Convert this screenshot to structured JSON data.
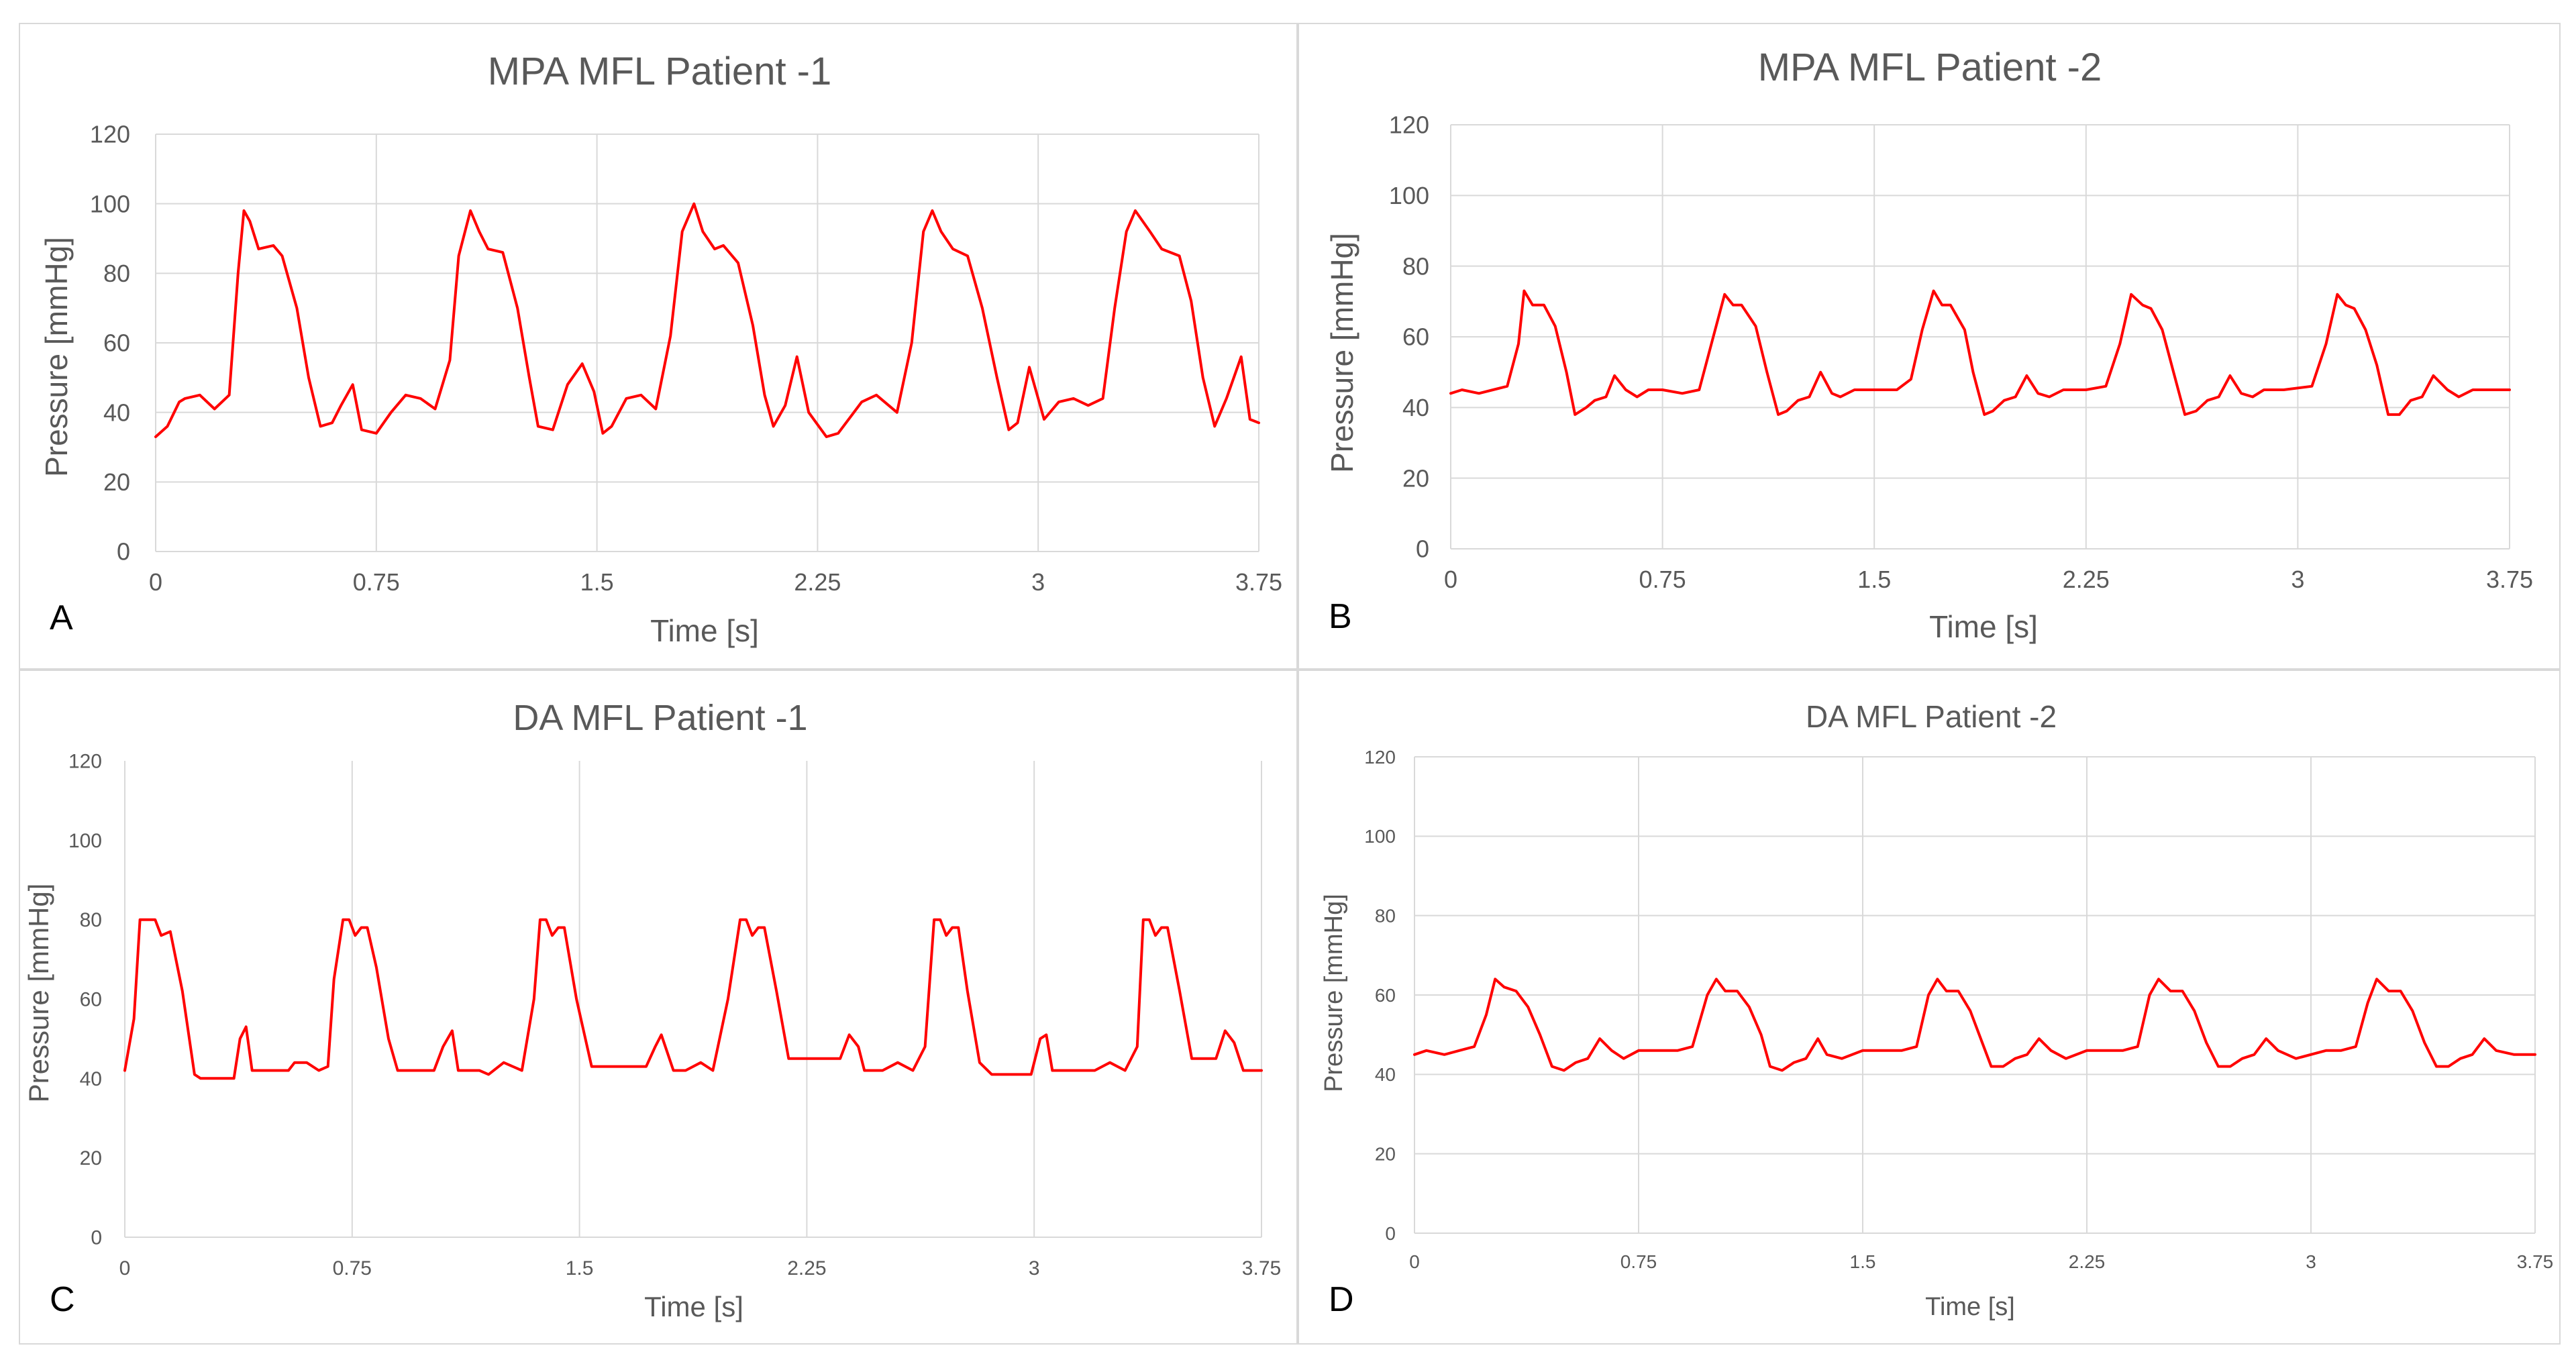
{
  "colors": {
    "series": "#ff0000",
    "grid": "#d9d9d9",
    "text": "#595959",
    "letter": "#000000"
  },
  "chart_data": [
    {
      "panel": "A",
      "type": "line",
      "title": "MPA MFL Patient  -1",
      "xlabel": "Time [s]",
      "ylabel": "Pressure [mmHg]",
      "xlim": [
        0,
        3.75
      ],
      "ylim": [
        0,
        120
      ],
      "xticks": [
        "0",
        "0.75",
        "1.5",
        "2.25",
        "3",
        "3.75"
      ],
      "xtick_values": [
        0,
        0.75,
        1.5,
        2.25,
        3,
        3.75
      ],
      "yticks": [
        "0",
        "20",
        "40",
        "60",
        "80",
        "100",
        "120"
      ],
      "ytick_values": [
        0,
        20,
        40,
        60,
        80,
        100,
        120
      ],
      "grid": "vertical and horizontal",
      "series": [
        {
          "name": "Pressure",
          "x": [
            0,
            0.04,
            0.08,
            0.1,
            0.15,
            0.2,
            0.25,
            0.28,
            0.3,
            0.32,
            0.35,
            0.4,
            0.43,
            0.48,
            0.52,
            0.56,
            0.6,
            0.63,
            0.67,
            0.7,
            0.75,
            0.8,
            0.85,
            0.9,
            0.95,
            1.0,
            1.03,
            1.07,
            1.1,
            1.13,
            1.18,
            1.23,
            1.27,
            1.3,
            1.35,
            1.4,
            1.45,
            1.49,
            1.52,
            1.55,
            1.6,
            1.65,
            1.7,
            1.75,
            1.79,
            1.83,
            1.86,
            1.9,
            1.93,
            1.98,
            2.03,
            2.07,
            2.1,
            2.14,
            2.18,
            2.22,
            2.28,
            2.32,
            2.4,
            2.45,
            2.52,
            2.57,
            2.61,
            2.64,
            2.67,
            2.71,
            2.76,
            2.81,
            2.86,
            2.9,
            2.93,
            2.97,
            3.02,
            3.07,
            3.12,
            3.17,
            3.22,
            3.26,
            3.3,
            3.33,
            3.38,
            3.42,
            3.48,
            3.52,
            3.56,
            3.6,
            3.64,
            3.69,
            3.72,
            3.75
          ],
          "y": [
            33,
            36,
            43,
            44,
            45,
            41,
            45,
            80,
            98,
            95,
            87,
            88,
            85,
            70,
            50,
            36,
            37,
            42,
            48,
            35,
            34,
            40,
            45,
            44,
            41,
            55,
            85,
            98,
            92,
            87,
            86,
            70,
            50,
            36,
            35,
            48,
            54,
            46,
            34,
            36,
            44,
            45,
            41,
            62,
            92,
            100,
            92,
            87,
            88,
            83,
            65,
            45,
            36,
            42,
            56,
            40,
            33,
            34,
            43,
            45,
            40,
            60,
            92,
            98,
            92,
            87,
            85,
            70,
            50,
            35,
            37,
            53,
            38,
            43,
            44,
            42,
            44,
            70,
            92,
            98,
            92,
            87,
            85,
            72,
            50,
            36,
            44,
            56,
            38,
            37
          ]
        }
      ]
    },
    {
      "panel": "B",
      "type": "line",
      "title": "MPA MFL Patient -2",
      "xlabel": "Time [s]",
      "ylabel": "Pressure [mmHg]",
      "xlim": [
        0,
        3.75
      ],
      "ylim": [
        0,
        120
      ],
      "xticks": [
        "0",
        "0.75",
        "1.5",
        "2.25",
        "3",
        "3.75"
      ],
      "xtick_values": [
        0,
        0.75,
        1.5,
        2.25,
        3,
        3.75
      ],
      "yticks": [
        "0",
        "20",
        "40",
        "60",
        "80",
        "100",
        "120"
      ],
      "ytick_values": [
        0,
        20,
        40,
        60,
        80,
        100,
        120
      ],
      "grid": "vertical and horizontal",
      "series": [
        {
          "name": "Pressure",
          "x": [
            0,
            0.04,
            0.1,
            0.15,
            0.2,
            0.24,
            0.26,
            0.29,
            0.33,
            0.37,
            0.41,
            0.44,
            0.48,
            0.51,
            0.55,
            0.58,
            0.62,
            0.66,
            0.7,
            0.75,
            0.82,
            0.88,
            0.93,
            0.97,
            1.0,
            1.03,
            1.08,
            1.12,
            1.16,
            1.19,
            1.23,
            1.27,
            1.31,
            1.35,
            1.38,
            1.43,
            1.5,
            1.58,
            1.63,
            1.67,
            1.71,
            1.74,
            1.77,
            1.82,
            1.85,
            1.89,
            1.92,
            1.96,
            2.0,
            2.04,
            2.08,
            2.12,
            2.17,
            2.25,
            2.32,
            2.37,
            2.41,
            2.45,
            2.48,
            2.52,
            2.56,
            2.6,
            2.64,
            2.68,
            2.72,
            2.76,
            2.8,
            2.84,
            2.88,
            2.95,
            3.05,
            3.1,
            3.14,
            3.17,
            3.2,
            3.24,
            3.28,
            3.32,
            3.36,
            3.4,
            3.44,
            3.48,
            3.53,
            3.57,
            3.62,
            3.68,
            3.75
          ],
          "y": [
            44,
            45,
            44,
            45,
            46,
            58,
            73,
            69,
            69,
            63,
            50,
            38,
            40,
            42,
            43,
            49,
            45,
            43,
            45,
            45,
            44,
            45,
            60,
            72,
            69,
            69,
            63,
            50,
            38,
            39,
            42,
            43,
            50,
            44,
            43,
            45,
            45,
            45,
            48,
            62,
            73,
            69,
            69,
            62,
            50,
            38,
            39,
            42,
            43,
            49,
            44,
            43,
            45,
            45,
            46,
            58,
            72,
            69,
            68,
            62,
            50,
            38,
            39,
            42,
            43,
            49,
            44,
            43,
            45,
            45,
            46,
            58,
            72,
            69,
            68,
            62,
            52,
            38,
            38,
            42,
            43,
            49,
            45,
            43,
            45,
            45,
            45
          ]
        }
      ]
    },
    {
      "panel": "C",
      "type": "line",
      "title": "DA MFL Patient -1",
      "xlabel": "Time  [s]",
      "ylabel": "Pressure [mmHg]",
      "xlim": [
        0,
        3.75
      ],
      "ylim": [
        0,
        120
      ],
      "xticks": [
        "0",
        "0.75",
        "1.5",
        "2.25",
        "3",
        "3.75"
      ],
      "xtick_values": [
        0,
        0.75,
        1.5,
        2.25,
        3,
        3.75
      ],
      "yticks": [
        "0",
        "20",
        "40",
        "60",
        "80",
        "100",
        "120"
      ],
      "ytick_values": [
        0,
        20,
        40,
        60,
        80,
        100,
        120
      ],
      "grid": "vertical only",
      "series": [
        {
          "name": "Pressure",
          "x": [
            0,
            0.03,
            0.05,
            0.08,
            0.1,
            0.12,
            0.15,
            0.19,
            0.23,
            0.25,
            0.36,
            0.38,
            0.4,
            0.42,
            0.44,
            0.54,
            0.56,
            0.6,
            0.64,
            0.67,
            0.69,
            0.72,
            0.74,
            0.76,
            0.78,
            0.8,
            0.83,
            0.87,
            0.9,
            1.02,
            1.05,
            1.08,
            1.1,
            1.17,
            1.2,
            1.25,
            1.31,
            1.35,
            1.37,
            1.39,
            1.41,
            1.43,
            1.45,
            1.49,
            1.54,
            1.57,
            1.72,
            1.75,
            1.77,
            1.81,
            1.85,
            1.9,
            1.94,
            1.99,
            2.03,
            2.05,
            2.07,
            2.09,
            2.11,
            2.15,
            2.19,
            2.22,
            2.36,
            2.39,
            2.42,
            2.44,
            2.5,
            2.55,
            2.6,
            2.64,
            2.67,
            2.69,
            2.71,
            2.73,
            2.75,
            2.78,
            2.82,
            2.86,
            2.99,
            3.02,
            3.04,
            3.06,
            3.2,
            3.25,
            3.3,
            3.34,
            3.36,
            3.38,
            3.4,
            3.42,
            3.44,
            3.48,
            3.52,
            3.54,
            3.6,
            3.63,
            3.66,
            3.69,
            3.75
          ],
          "y": [
            42,
            55,
            80,
            80,
            80,
            76,
            77,
            62,
            41,
            40,
            40,
            50,
            53,
            42,
            42,
            42,
            44,
            44,
            42,
            43,
            65,
            80,
            80,
            76,
            78,
            78,
            68,
            50,
            42,
            42,
            48,
            52,
            42,
            42,
            41,
            44,
            42,
            60,
            80,
            80,
            76,
            78,
            78,
            60,
            43,
            43,
            43,
            48,
            51,
            42,
            42,
            44,
            42,
            60,
            80,
            80,
            76,
            78,
            78,
            62,
            45,
            45,
            45,
            51,
            48,
            42,
            42,
            44,
            42,
            48,
            80,
            80,
            76,
            78,
            78,
            62,
            44,
            41,
            41,
            50,
            51,
            42,
            42,
            44,
            42,
            48,
            80,
            80,
            76,
            78,
            78,
            62,
            45,
            45,
            45,
            52,
            49,
            42,
            42
          ]
        }
      ]
    },
    {
      "panel": "D",
      "type": "line",
      "title": "DA MFL Patient -2",
      "xlabel": "Time [s]",
      "ylabel": "Pressure [mmHg]",
      "xlim": [
        0,
        3.75
      ],
      "ylim": [
        0,
        120
      ],
      "xticks": [
        "0",
        "0.75",
        "1.5",
        "2.25",
        "3",
        "3.75"
      ],
      "xtick_values": [
        0,
        0.75,
        1.5,
        2.25,
        3,
        3.75
      ],
      "yticks": [
        "0",
        "20",
        "40",
        "60",
        "80",
        "100",
        "120"
      ],
      "ytick_values": [
        0,
        20,
        40,
        60,
        80,
        100,
        120
      ],
      "grid": "vertical and horizontal",
      "series": [
        {
          "name": "Pressure",
          "x": [
            0,
            0.04,
            0.1,
            0.15,
            0.2,
            0.24,
            0.27,
            0.3,
            0.34,
            0.38,
            0.42,
            0.46,
            0.5,
            0.54,
            0.58,
            0.62,
            0.66,
            0.7,
            0.75,
            0.82,
            0.88,
            0.93,
            0.98,
            1.01,
            1.04,
            1.08,
            1.12,
            1.16,
            1.19,
            1.23,
            1.27,
            1.31,
            1.35,
            1.38,
            1.43,
            1.5,
            1.58,
            1.63,
            1.68,
            1.72,
            1.75,
            1.78,
            1.82,
            1.86,
            1.9,
            1.93,
            1.97,
            2.01,
            2.05,
            2.09,
            2.13,
            2.18,
            2.25,
            2.32,
            2.37,
            2.42,
            2.46,
            2.49,
            2.53,
            2.57,
            2.61,
            2.65,
            2.69,
            2.73,
            2.77,
            2.81,
            2.85,
            2.89,
            2.95,
            3.05,
            3.1,
            3.15,
            3.19,
            3.22,
            3.26,
            3.3,
            3.34,
            3.38,
            3.42,
            3.46,
            3.5,
            3.54,
            3.58,
            3.62,
            3.68,
            3.75
          ],
          "y": [
            45,
            46,
            45,
            46,
            47,
            55,
            64,
            62,
            61,
            57,
            50,
            42,
            41,
            43,
            44,
            49,
            46,
            44,
            46,
            46,
            46,
            47,
            60,
            64,
            61,
            61,
            57,
            50,
            42,
            41,
            43,
            44,
            49,
            45,
            44,
            46,
            46,
            46,
            47,
            60,
            64,
            61,
            61,
            56,
            48,
            42,
            42,
            44,
            45,
            49,
            46,
            44,
            46,
            46,
            46,
            47,
            60,
            64,
            61,
            61,
            56,
            48,
            42,
            42,
            44,
            45,
            49,
            46,
            44,
            46,
            46,
            47,
            58,
            64,
            61,
            61,
            56,
            48,
            42,
            42,
            44,
            45,
            49,
            46,
            45,
            45
          ]
        }
      ]
    }
  ]
}
